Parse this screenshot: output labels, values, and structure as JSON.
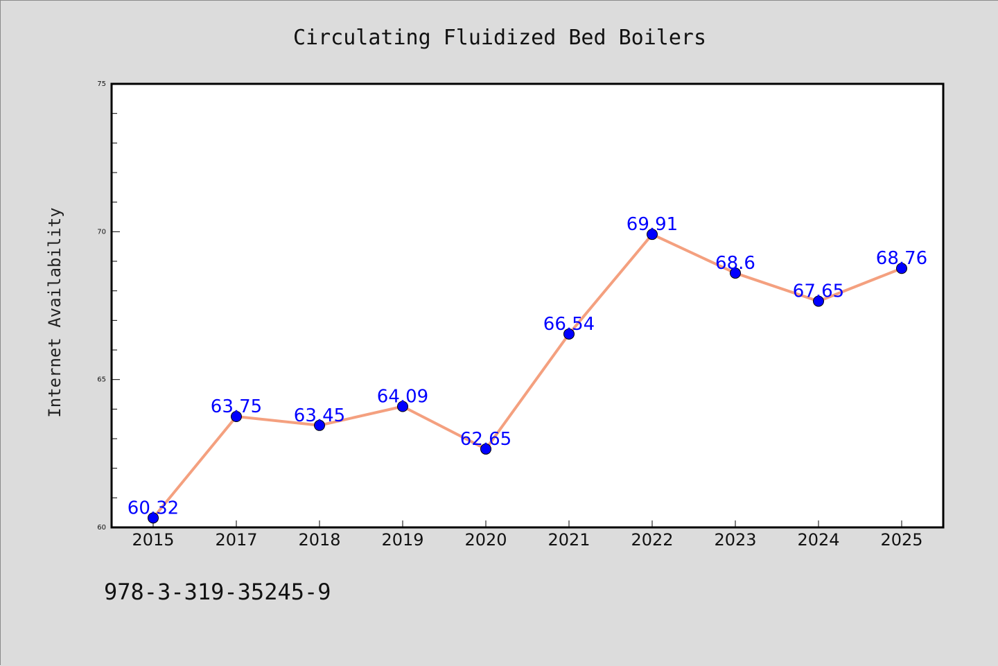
{
  "figure": {
    "background": "#dcdcdc",
    "plot_background": "#ffffff",
    "footer_text": "978-3-319-35245-9"
  },
  "chart_data": {
    "type": "line",
    "title": "Circulating Fluidized Bed Boilers",
    "xlabel": "",
    "ylabel": "Internet Availability",
    "categories": [
      "2015",
      "2017",
      "2018",
      "2019",
      "2020",
      "2021",
      "2022",
      "2023",
      "2024",
      "2025"
    ],
    "series": [
      {
        "values": [
          60.32,
          63.75,
          63.45,
          64.09,
          62.65,
          66.54,
          69.91,
          68.6,
          67.65,
          68.76
        ],
        "data_labels": [
          "60.32",
          "63.75",
          "63.45",
          "64.09",
          "62.65",
          "66.54",
          "69.91",
          "68.6",
          "67.65",
          "68.76"
        ],
        "line_color": "#f4a07f",
        "marker_color": "#0000ff",
        "label_color": "#0000ff"
      }
    ],
    "ylim": [
      60,
      75
    ],
    "y_ticks": [
      "60",
      "65",
      "70",
      "75"
    ],
    "grid": false,
    "legend": "none"
  }
}
